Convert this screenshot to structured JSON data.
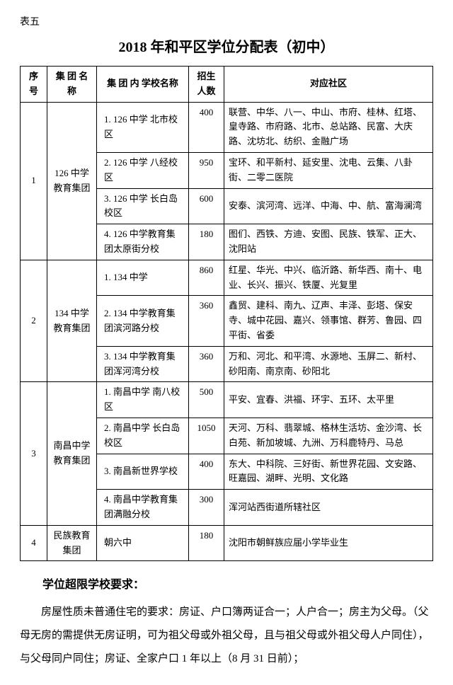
{
  "table_label": "表五",
  "title": "2018 年和平区学位分配表（初中）",
  "headers": {
    "idx": "序号",
    "group": "集 团\n名 称",
    "school": "集 团 内\n学校名称",
    "count": "招生\n人数",
    "community": "对应社区"
  },
  "groups": [
    {
      "idx": "1",
      "name": "126 中学教育集团",
      "rows": [
        {
          "school": "1. 126 中学\n北市校区",
          "count": "400",
          "community": "联营、中华、八一、中山、市府、桂林、红塔、皇寺路、市府路、北市、总站路、民富、大庆路、沈坊北、纺织、金融广场"
        },
        {
          "school": "2. 126 中学\n八经校区",
          "count": "950",
          "community": "宝环、和平新村、延安里、沈电、云集、八卦街、二零二医院"
        },
        {
          "school": "3. 126 中学\n长白岛校区",
          "count": "600",
          "community": "安泰、滨河湾、远洋、中海、中、航、富海澜湾"
        },
        {
          "school": "4. 126 中学教育集团太原街分校",
          "count": "180",
          "community": "图们、西铁、方迪、安图、民族、铁军、正大、沈阳站"
        }
      ]
    },
    {
      "idx": "2",
      "name": "134 中学教育集团",
      "rows": [
        {
          "school": "1. 134 中学",
          "count": "860",
          "community": "红星、华光、中兴、临沂路、新华西、南十、电业、长兴、振兴、铁厦、光复里"
        },
        {
          "school": "2. 134 中学教育集团滨河路分校",
          "count": "360",
          "community": "鑫贸、建科、南九、辽声、丰泽、彭塔、保安寺、城中花园、嘉兴、领事馆、群芳、鲁园、四平街、省委"
        },
        {
          "school": "3. 134 中学教育集团浑河湾分校",
          "count": "360",
          "community": "万和、河北、和平湾、水源地、玉屏二、新村、砂阳南、南京南、砂阳北"
        }
      ]
    },
    {
      "idx": "3",
      "name": "南昌中学教育集团",
      "rows": [
        {
          "school": "1.  南昌中学\n南八校区",
          "count": "500",
          "community": "平安、宜春、洪福、环宇、五环、太平里"
        },
        {
          "school": "2.  南昌中学\n长白岛校区",
          "count": "1050",
          "community": "天河、万科、翡翠城、格林生活坊、金沙湾、长白苑、新加坡城、九洲、万科鹿特丹、马总"
        },
        {
          "school": "3. 南昌新世界学校",
          "count": "400",
          "community": "东大、中科院、三好街、新世界花园、文安路、旺嘉园、湖畔、光明、文化路"
        },
        {
          "school": "4. 南昌中学教育集团满融分校",
          "count": "300",
          "community": "浑河站西街道所辖社区"
        }
      ]
    },
    {
      "idx": "4",
      "name": "民族教育集团",
      "rows": [
        {
          "school": "朝六中",
          "count": "180",
          "community": "沈阳市朝鲜族应届小学毕业生"
        }
      ]
    }
  ],
  "req_title": "学位超限学校要求：",
  "body_p1": "房屋性质未普通住宅的要求：房证、户口簿两证合一；人户合一；房主为父母。（父母无房的需提供无房证明，可为祖父母或外祖父母，且与祖父母或外祖父母人户同住），与父母同户同住；房证、全家户口 1 年以上（8 月 31 日前）；"
}
